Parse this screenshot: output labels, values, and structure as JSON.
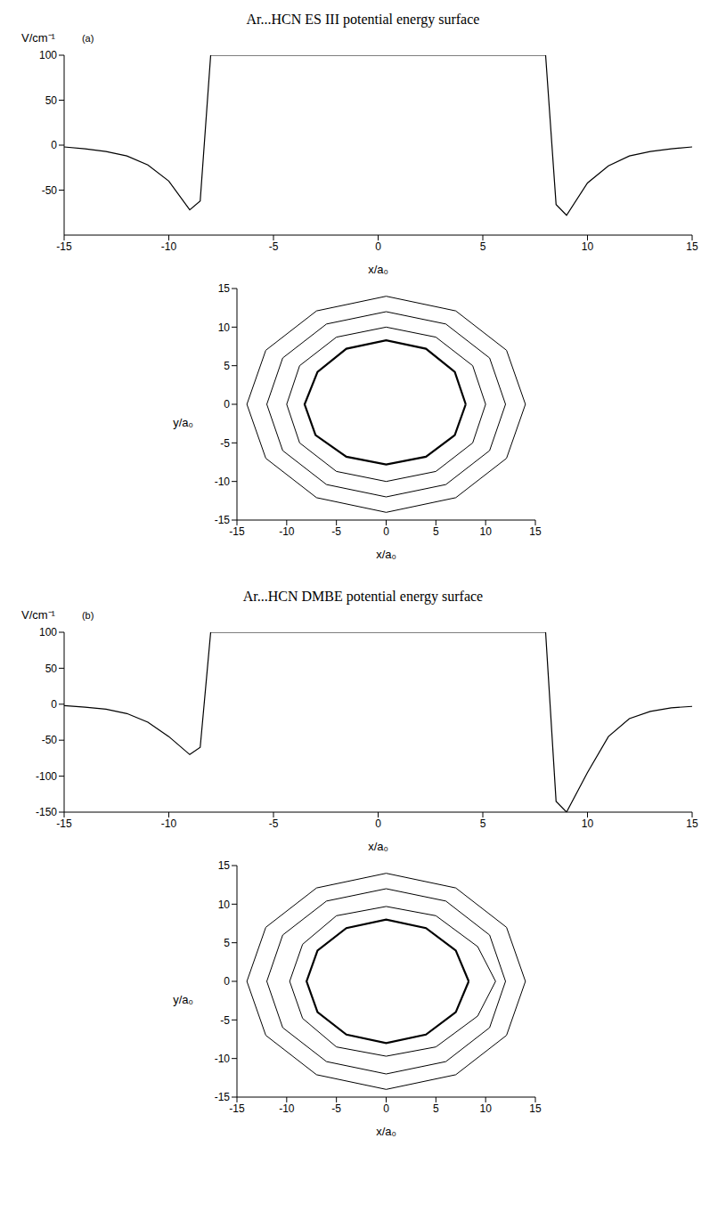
{
  "chart_data": [
    {
      "type": "line",
      "panel": "(a)",
      "title": "Ar...HCN ES III potential energy surface",
      "y_label": "V/cm⁻¹",
      "x_label": "x/a₀",
      "x": [
        -15,
        -14,
        -13,
        -12,
        -11,
        -10,
        -9,
        -8.5,
        -8,
        -7,
        -5,
        0,
        5,
        7,
        8,
        8.5,
        9,
        10,
        11,
        12,
        13,
        14,
        15
      ],
      "values": [
        -2,
        -4,
        -7,
        -12,
        -22,
        -40,
        -72,
        -62,
        100,
        100,
        100,
        100,
        100,
        100,
        100,
        -66,
        -78,
        -42,
        -23,
        -12,
        -7,
        -4,
        -2
      ],
      "color": "#000000",
      "xlim": [
        -15,
        15
      ],
      "xticks": [
        -15,
        -10,
        -5,
        0,
        5,
        10,
        15
      ],
      "ylim": [
        -100,
        100
      ],
      "yticks": [
        -50,
        0,
        50,
        100
      ]
    },
    {
      "type": "contour",
      "x_label": "x/a₀",
      "y_label": "y/a₀",
      "xlim": [
        -15,
        15
      ],
      "xticks": [
        -15,
        -10,
        -5,
        0,
        5,
        10,
        15
      ],
      "ylim": [
        -15,
        15
      ],
      "yticks": [
        -15,
        -10,
        -5,
        0,
        5,
        10,
        15
      ],
      "series": [
        {
          "color": "#000000",
          "x": [
            8,
            6.9,
            4,
            0,
            -4,
            -6.9,
            -8.2,
            -7.1,
            -4,
            0,
            4,
            6.9,
            8
          ],
          "y": [
            0,
            4.2,
            7.2,
            8.3,
            7.2,
            4.2,
            0,
            -4,
            -6.8,
            -7.8,
            -6.8,
            -4,
            0
          ]
        },
        {
          "color": "#000000",
          "x": [
            10,
            8.7,
            5,
            0,
            -5,
            -8.7,
            -10,
            -8.7,
            -5,
            0,
            5,
            8.7,
            10
          ],
          "y": [
            0,
            5,
            8.7,
            10,
            8.7,
            5,
            0,
            -5,
            -8.7,
            -10,
            -8.7,
            -5,
            0
          ]
        },
        {
          "color": "#000000",
          "x": [
            12,
            10.4,
            6,
            0,
            -6,
            -10.4,
            -12,
            -10.4,
            -6,
            0,
            6,
            10.4,
            12
          ],
          "y": [
            0,
            6,
            10.4,
            12,
            10.4,
            6,
            0,
            -6,
            -10.4,
            -12,
            -10.4,
            -6,
            0
          ]
        },
        {
          "color": "#000000",
          "x": [
            14,
            12.1,
            7,
            0,
            -7,
            -12.1,
            -14,
            -12.1,
            -7,
            0,
            7,
            12.1,
            14
          ],
          "y": [
            0,
            7,
            12.1,
            14,
            12.1,
            7,
            0,
            -7,
            -12.1,
            -14,
            -12.1,
            -7,
            0
          ]
        }
      ]
    },
    {
      "type": "line",
      "panel": "(b)",
      "title": "Ar...HCN DMBE potential energy surface",
      "y_label": "V/cm⁻¹",
      "x_label": "x/a₀",
      "x": [
        -15,
        -14,
        -13,
        -12,
        -11,
        -10,
        -9,
        -8.5,
        -8,
        -7,
        -5,
        0,
        5,
        7,
        8,
        8.5,
        9,
        10,
        11,
        12,
        13,
        14,
        15
      ],
      "values": [
        -2,
        -4,
        -7,
        -13,
        -25,
        -45,
        -70,
        -60,
        100,
        100,
        100,
        100,
        100,
        100,
        100,
        -135,
        -150,
        -95,
        -45,
        -20,
        -10,
        -5,
        -3
      ],
      "color": "#000000",
      "xlim": [
        -15,
        15
      ],
      "xticks": [
        -15,
        -10,
        -5,
        0,
        5,
        10,
        15
      ],
      "ylim": [
        -150,
        100
      ],
      "yticks": [
        -150,
        -100,
        -50,
        0,
        50,
        100
      ]
    },
    {
      "type": "contour",
      "x_label": "x/a₀",
      "y_label": "y/a₀",
      "xlim": [
        -15,
        15
      ],
      "xticks": [
        -15,
        -10,
        -5,
        0,
        5,
        10,
        15
      ],
      "ylim": [
        -15,
        15
      ],
      "yticks": [
        -15,
        -10,
        -5,
        0,
        5,
        10,
        15
      ],
      "series": [
        {
          "color": "#000000",
          "x": [
            8.3,
            7,
            4,
            0,
            -4,
            -6.9,
            -8,
            -6.9,
            -4,
            0,
            4,
            7,
            8.3
          ],
          "y": [
            0,
            4,
            6.9,
            8,
            6.9,
            4,
            0,
            -4,
            -6.9,
            -8,
            -6.9,
            -4,
            0
          ]
        },
        {
          "color": "#000000",
          "x": [
            11,
            9.2,
            5,
            0,
            -5,
            -8.4,
            -9.7,
            -8.4,
            -5,
            0,
            5,
            9.2,
            11
          ],
          "y": [
            0,
            4.5,
            8.5,
            9.7,
            8.5,
            4.8,
            0,
            -4.8,
            -8.5,
            -9.7,
            -8.5,
            -4.5,
            0
          ]
        },
        {
          "color": "#000000",
          "x": [
            12,
            10.4,
            6,
            0,
            -6,
            -10.4,
            -12,
            -10.4,
            -6,
            0,
            6,
            10.4,
            12
          ],
          "y": [
            0,
            6,
            10.4,
            12,
            10.4,
            6,
            0,
            -6,
            -10.4,
            -12,
            -10.4,
            -6,
            0
          ]
        },
        {
          "color": "#000000",
          "x": [
            14,
            12.1,
            7,
            0,
            -7,
            -12.1,
            -14,
            -12.1,
            -7,
            0,
            7,
            12.1,
            14
          ],
          "y": [
            0,
            7,
            12.1,
            14,
            12.1,
            7,
            0,
            -7,
            -12.1,
            -14,
            -12.1,
            -7,
            0
          ]
        }
      ]
    }
  ]
}
